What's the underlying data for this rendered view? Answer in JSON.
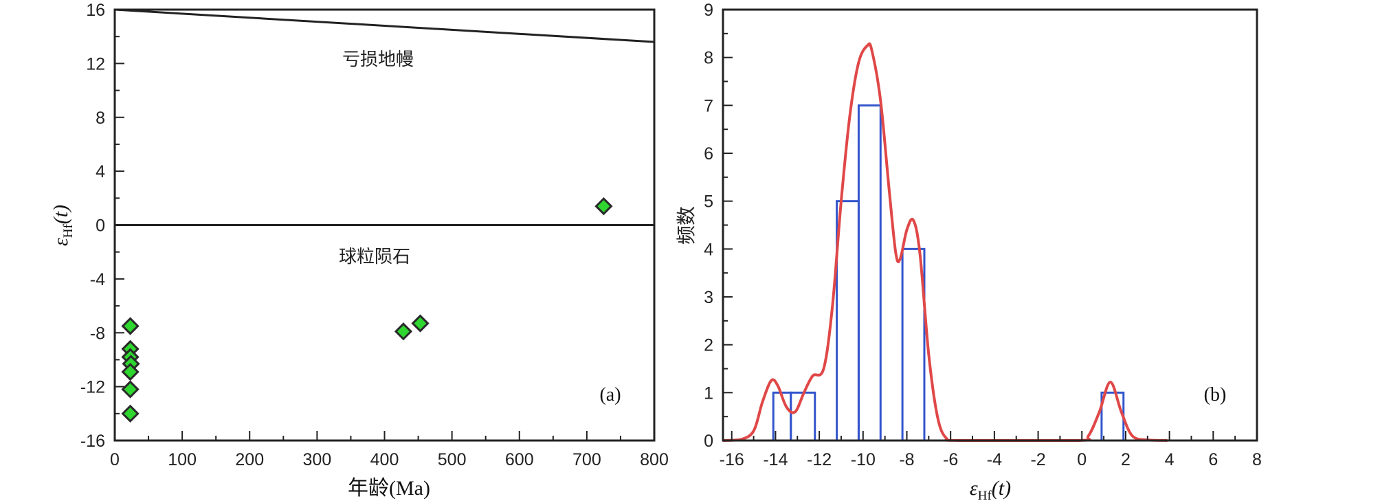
{
  "chart_data": [
    {
      "panel": "a",
      "type": "scatter",
      "panel_label": "(a)",
      "xlabel": "年龄(Ma)",
      "ylabel": {
        "main": "ε",
        "sub": "Hf",
        "tail": "(t)"
      },
      "xlim": [
        0,
        800
      ],
      "ylim": [
        -16,
        16
      ],
      "x_ticks": [
        0,
        100,
        200,
        300,
        400,
        500,
        600,
        700,
        800
      ],
      "y_ticks": [
        -16,
        -12,
        -8,
        -4,
        0,
        4,
        8,
        12,
        16
      ],
      "y_tick_labels": [
        "-16",
        "-12",
        "-8",
        "-4",
        "0",
        "4",
        "8",
        "12",
        "16"
      ],
      "reference_lines": [
        {
          "name": "depleted-mantle",
          "label": "亏损地幔",
          "points": [
            [
              0,
              16.0
            ],
            [
              800,
              13.6
            ]
          ]
        },
        {
          "name": "chondrite",
          "label": "球粒陨石",
          "points": [
            [
              0,
              0
            ],
            [
              800,
              0
            ]
          ]
        }
      ],
      "marker_color": "#2fd62f",
      "marker_edge": "#2a2a2a",
      "points": [
        {
          "x": 23,
          "y": -7.5
        },
        {
          "x": 23,
          "y": -9.2
        },
        {
          "x": 23,
          "y": -9.8
        },
        {
          "x": 24,
          "y": -10.3
        },
        {
          "x": 23,
          "y": -10.9
        },
        {
          "x": 23,
          "y": -12.2
        },
        {
          "x": 23,
          "y": -14.0
        },
        {
          "x": 428,
          "y": -7.9
        },
        {
          "x": 453,
          "y": -7.3
        },
        {
          "x": 725,
          "y": 1.4
        }
      ]
    },
    {
      "panel": "b",
      "type": "bar",
      "panel_label": "(b)",
      "xlabel": {
        "main": "ε",
        "sub": "Hf",
        "tail": "(t)"
      },
      "ylabel": "频数",
      "xlim": [
        -16.4,
        8
      ],
      "ylim": [
        0,
        9
      ],
      "x_ticks": [
        -16,
        -14,
        -12,
        -10,
        -8,
        -6,
        -4,
        -2,
        0,
        2,
        4,
        6,
        8
      ],
      "x_tick_labels": [
        "-16",
        "-14",
        "-12",
        "-10",
        "-8",
        "-6",
        "-4",
        "-2",
        "0",
        "2",
        "4",
        "6",
        "8"
      ],
      "y_ticks": [
        0,
        1,
        2,
        3,
        4,
        5,
        6,
        7,
        8,
        9
      ],
      "bar_color": "#3355cc",
      "curve_color": "#e04848",
      "bins": [
        {
          "from": -14.1,
          "to": -13.3,
          "count": 1
        },
        {
          "from": -13.3,
          "to": -12.2,
          "count": 1
        },
        {
          "from": -11.2,
          "to": -10.2,
          "count": 5
        },
        {
          "from": -10.2,
          "to": -9.2,
          "count": 7
        },
        {
          "from": -8.2,
          "to": -7.2,
          "count": 4
        },
        {
          "from": 0.9,
          "to": 1.9,
          "count": 1
        }
      ],
      "density_curve": [
        [
          -16.4,
          0
        ],
        [
          -15.6,
          0.02
        ],
        [
          -15.0,
          0.2
        ],
        [
          -14.6,
          0.8
        ],
        [
          -14.2,
          1.25
        ],
        [
          -13.9,
          1.15
        ],
        [
          -13.5,
          0.7
        ],
        [
          -13.1,
          0.6
        ],
        [
          -12.7,
          1.0
        ],
        [
          -12.3,
          1.35
        ],
        [
          -11.8,
          1.5
        ],
        [
          -11.4,
          2.8
        ],
        [
          -11.0,
          5.0
        ],
        [
          -10.6,
          6.8
        ],
        [
          -10.2,
          7.9
        ],
        [
          -9.8,
          8.25
        ],
        [
          -9.6,
          8.15
        ],
        [
          -9.2,
          7.1
        ],
        [
          -8.8,
          5.2
        ],
        [
          -8.5,
          3.9
        ],
        [
          -8.3,
          3.8
        ],
        [
          -8.0,
          4.4
        ],
        [
          -7.7,
          4.6
        ],
        [
          -7.4,
          3.9
        ],
        [
          -7.0,
          1.8
        ],
        [
          -6.6,
          0.5
        ],
        [
          -6.2,
          0.05
        ],
        [
          -5.6,
          0
        ],
        [
          -0.2,
          0
        ],
        [
          0.3,
          0.1
        ],
        [
          0.8,
          0.6
        ],
        [
          1.3,
          1.22
        ],
        [
          1.8,
          0.6
        ],
        [
          2.3,
          0.1
        ],
        [
          3.0,
          0.01
        ],
        [
          3.9,
          0
        ]
      ]
    }
  ]
}
